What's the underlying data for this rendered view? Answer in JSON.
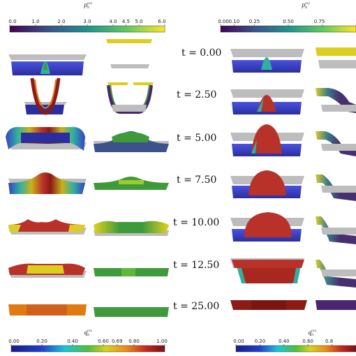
{
  "colorbars": {
    "top_left": {
      "label": "p_h^(e)",
      "ticks": [
        "0.0",
        "1.0",
        "2.0",
        "3.0",
        "4.0",
        "4.5",
        "5.0",
        "6.0"
      ],
      "values": [
        0,
        1,
        2,
        3,
        4,
        4.5,
        5,
        6
      ],
      "range": [
        0,
        6
      ],
      "colormap": "viridis"
    },
    "top_right": {
      "label": "p_h^(e)",
      "ticks": [
        "0.00",
        "0.10",
        "0.25",
        "0.50",
        "0.75"
      ],
      "values": [
        0,
        0.1,
        0.25,
        0.5,
        0.75
      ],
      "range": [
        0,
        1
      ],
      "colormap": "viridis"
    },
    "bottom_left": {
      "label": "q_h^(e)",
      "ticks": [
        "0.00",
        "0.20",
        "0.40",
        "0.60",
        "0.69",
        "0.80",
        "1.00"
      ],
      "values": [
        0,
        0.2,
        0.4,
        0.6,
        0.69,
        0.8,
        1.0
      ],
      "range": [
        0,
        1
      ],
      "colormap": "jet"
    },
    "bottom_right": {
      "label": "q_h^(e)",
      "ticks": [
        "0.00",
        "0.20",
        "0.40",
        "0.60",
        "0.8"
      ],
      "values": [
        0,
        0.2,
        0.4,
        0.6,
        0.8
      ],
      "range": [
        0,
        1
      ],
      "colormap": "jet"
    }
  },
  "time_labels": [
    "t = 0.00",
    "t = 2.50",
    "t = 5.00",
    "t = 7.50",
    "t = 10.00",
    "t = 12.50",
    "t = 25.00"
  ],
  "colors": {
    "gray_sheet": "#bdbdbd",
    "blue": "#3a3fc7",
    "green": "#3f9a3c",
    "yellow": "#dccd1e",
    "red": "#b8322a",
    "orange": "#e27a14",
    "purple": "#4a2570"
  }
}
